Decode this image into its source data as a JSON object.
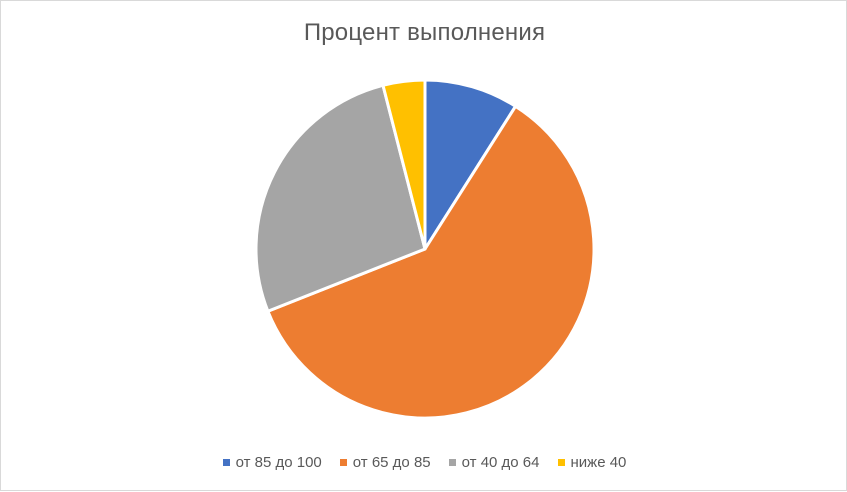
{
  "chart_data": {
    "type": "pie",
    "title": "Процент выполнения",
    "categories": [
      "от 85 до 100",
      "от 65 до 85",
      "от 40 до 64",
      "ниже 40"
    ],
    "values": [
      9,
      60,
      27,
      4
    ],
    "colors": [
      "#4472c4",
      "#ed7d31",
      "#a5a5a5",
      "#ffc000"
    ],
    "legend_position": "bottom"
  }
}
